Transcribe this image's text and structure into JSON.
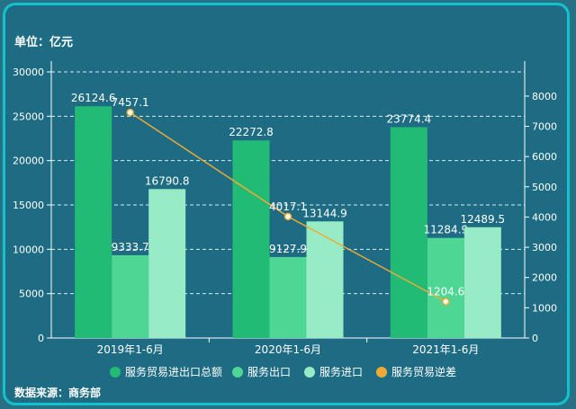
{
  "unit_label": "单位：亿元",
  "source_label": "数据来源：商务部",
  "colors": {
    "background": "#1e6c83",
    "border": "#11c2cf",
    "total": "#22bb75",
    "export": "#4ed695",
    "import": "#98ecc5",
    "deficit": "#f0a935",
    "text": "#ffffff",
    "grid": "#ffffff"
  },
  "chart_data": {
    "type": "bar",
    "title": "",
    "categories": [
      "2019年1-6月",
      "2020年1-6月",
      "2021年1-6月"
    ],
    "series": [
      {
        "name": "服务贸易进出口总额",
        "type": "bar",
        "axis": "left",
        "values": [
          26124.6,
          22272.8,
          23774.4
        ],
        "labels": [
          "26124.6",
          "22272.8",
          "23774.4"
        ]
      },
      {
        "name": "服务出口",
        "type": "bar",
        "axis": "left",
        "values": [
          9333.7,
          9127.9,
          11284.9
        ],
        "labels": [
          "9333.7",
          "9127.9",
          "11284.9"
        ]
      },
      {
        "name": "服务进口",
        "type": "bar",
        "axis": "left",
        "values": [
          16790.8,
          13144.9,
          12489.5
        ],
        "labels": [
          "16790.8",
          "13144.9",
          "12489.5"
        ]
      },
      {
        "name": "服务贸易逆差",
        "type": "line",
        "axis": "right",
        "values": [
          7457.1,
          4017.1,
          1204.6
        ],
        "labels": [
          "7457.1",
          "4017.1",
          "1204.6"
        ]
      }
    ],
    "y_left": {
      "min": 0,
      "max": 30000,
      "ticks": [
        "0",
        "5000",
        "10000",
        "15000",
        "20000",
        "25000",
        "30000"
      ]
    },
    "y_right": {
      "min": 0,
      "max": 8800,
      "ticks": [
        "0",
        "1000",
        "2000",
        "3000",
        "4000",
        "5000",
        "6000",
        "7000",
        "8000"
      ]
    },
    "grid": true,
    "legend_position": "bottom"
  }
}
